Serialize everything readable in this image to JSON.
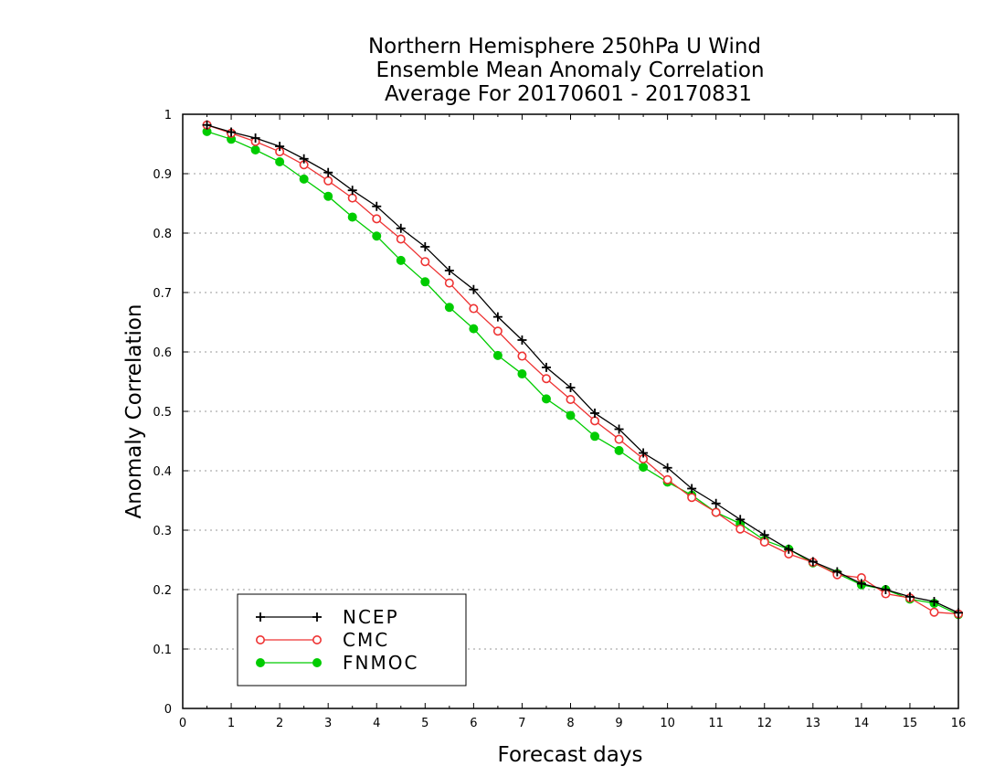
{
  "chart_data": {
    "type": "line",
    "title_lines": [
      "Northern Hemisphere 250hPa U Wind",
      "Ensemble Mean Anomaly Correlation",
      "Average For 20170601 - 20170831"
    ],
    "xlabel": "Forecast days",
    "ylabel": "Anomaly Correlation",
    "xlim": [
      0,
      16
    ],
    "ylim": [
      0,
      1
    ],
    "xticks": [
      "0",
      "1",
      "2",
      "3",
      "4",
      "5",
      "6",
      "7",
      "8",
      "9",
      "10",
      "11",
      "12",
      "13",
      "14",
      "15",
      "16"
    ],
    "yticks": [
      "0",
      "0.1",
      "0.2",
      "0.3",
      "0.4",
      "0.5",
      "0.6",
      "0.7",
      "0.8",
      "0.9",
      "1"
    ],
    "grid": "horizontal dotted",
    "legend_position": "bottom-left",
    "x": [
      0.5,
      1,
      1.5,
      2,
      2.5,
      3,
      3.5,
      4,
      4.5,
      5,
      5.5,
      6,
      6.5,
      7,
      7.5,
      8,
      8.5,
      9,
      9.5,
      10,
      10.5,
      11,
      11.5,
      12,
      12.5,
      13,
      13.5,
      14,
      14.5,
      15,
      15.5,
      16
    ],
    "series": [
      {
        "name": "NCEP",
        "color": "#000000",
        "marker": "plus",
        "values": [
          0.982,
          0.97,
          0.96,
          0.946,
          0.925,
          0.902,
          0.872,
          0.845,
          0.808,
          0.777,
          0.737,
          0.705,
          0.659,
          0.62,
          0.574,
          0.54,
          0.497,
          0.47,
          0.43,
          0.405,
          0.37,
          0.345,
          0.318,
          0.292,
          0.268,
          0.247,
          0.23,
          0.21,
          0.2,
          0.188,
          0.18,
          0.161
        ]
      },
      {
        "name": "CMC",
        "color": "#ee3333",
        "marker": "open-circle",
        "values": [
          0.982,
          0.968,
          0.954,
          0.937,
          0.915,
          0.888,
          0.859,
          0.824,
          0.79,
          0.752,
          0.716,
          0.673,
          0.635,
          0.593,
          0.555,
          0.52,
          0.484,
          0.453,
          0.42,
          0.385,
          0.355,
          0.33,
          0.302,
          0.28,
          0.26,
          0.246,
          0.225,
          0.22,
          0.193,
          0.186,
          0.162,
          0.159
        ]
      },
      {
        "name": "FNMOC",
        "color": "#00cc00",
        "marker": "filled-circle",
        "values": [
          0.971,
          0.958,
          0.94,
          0.92,
          0.891,
          0.862,
          0.827,
          0.795,
          0.754,
          0.718,
          0.675,
          0.639,
          0.594,
          0.563,
          0.521,
          0.493,
          0.458,
          0.434,
          0.406,
          0.381,
          0.359,
          0.33,
          0.311,
          0.283,
          0.268,
          0.245,
          0.227,
          0.208,
          0.2,
          0.184,
          0.177,
          0.158
        ]
      }
    ]
  }
}
